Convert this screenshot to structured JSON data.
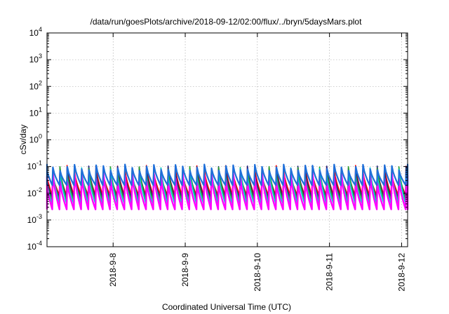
{
  "chart_data": {
    "type": "line",
    "title": "/data/run/goesPlots/archive/2018-09-12/02:00/flux/../bryn/5daysMars.plot",
    "xlabel": "Coordinated Universal Time (UTC)",
    "ylabel": "cSv/day",
    "yscale": "log",
    "ylim": [
      0.0001,
      10000
    ],
    "y_ticks": [
      {
        "base": "10",
        "exp": "-4"
      },
      {
        "base": "10",
        "exp": "-3"
      },
      {
        "base": "10",
        "exp": "-2"
      },
      {
        "base": "10",
        "exp": "-1"
      },
      {
        "base": "10",
        "exp": "0"
      },
      {
        "base": "10",
        "exp": "1"
      },
      {
        "base": "10",
        "exp": "2"
      },
      {
        "base": "10",
        "exp": "3"
      },
      {
        "base": "10",
        "exp": "4"
      }
    ],
    "xlim": [
      "2018-09-07 02:00",
      "2018-09-12 02:00"
    ],
    "x_ticks": [
      {
        "label": "2018-9-8",
        "time": "2018-09-08 00:00"
      },
      {
        "label": "2018-9-9",
        "time": "2018-09-09 00:00"
      },
      {
        "label": "2018-9-10",
        "time": "2018-09-10 00:00"
      },
      {
        "label": "2018-9-11",
        "time": "2018-09-11 00:00"
      },
      {
        "label": "2018-9-12",
        "time": "2018-09-12 00:00"
      }
    ],
    "grid": true,
    "cycle_hours": 2.4,
    "cycles": 50,
    "description_of_pattern": "sawtooth",
    "series": [
      {
        "color": "#ff0000",
        "peak": 0.11,
        "trough": 0.009
      },
      {
        "color": "#1f1f7a",
        "peak": 0.105,
        "trough": 0.007
      },
      {
        "color": "#2ca02c",
        "peak": 0.1,
        "trough": 0.0055
      },
      {
        "color": "#00ced1",
        "peak": 0.09,
        "trough": 0.004
      },
      {
        "color": "#ff00ff",
        "peak": 0.06,
        "trough": 0.0025
      },
      {
        "color": "#1e6fd9",
        "peak": 0.12,
        "trough": 0.02
      }
    ]
  }
}
